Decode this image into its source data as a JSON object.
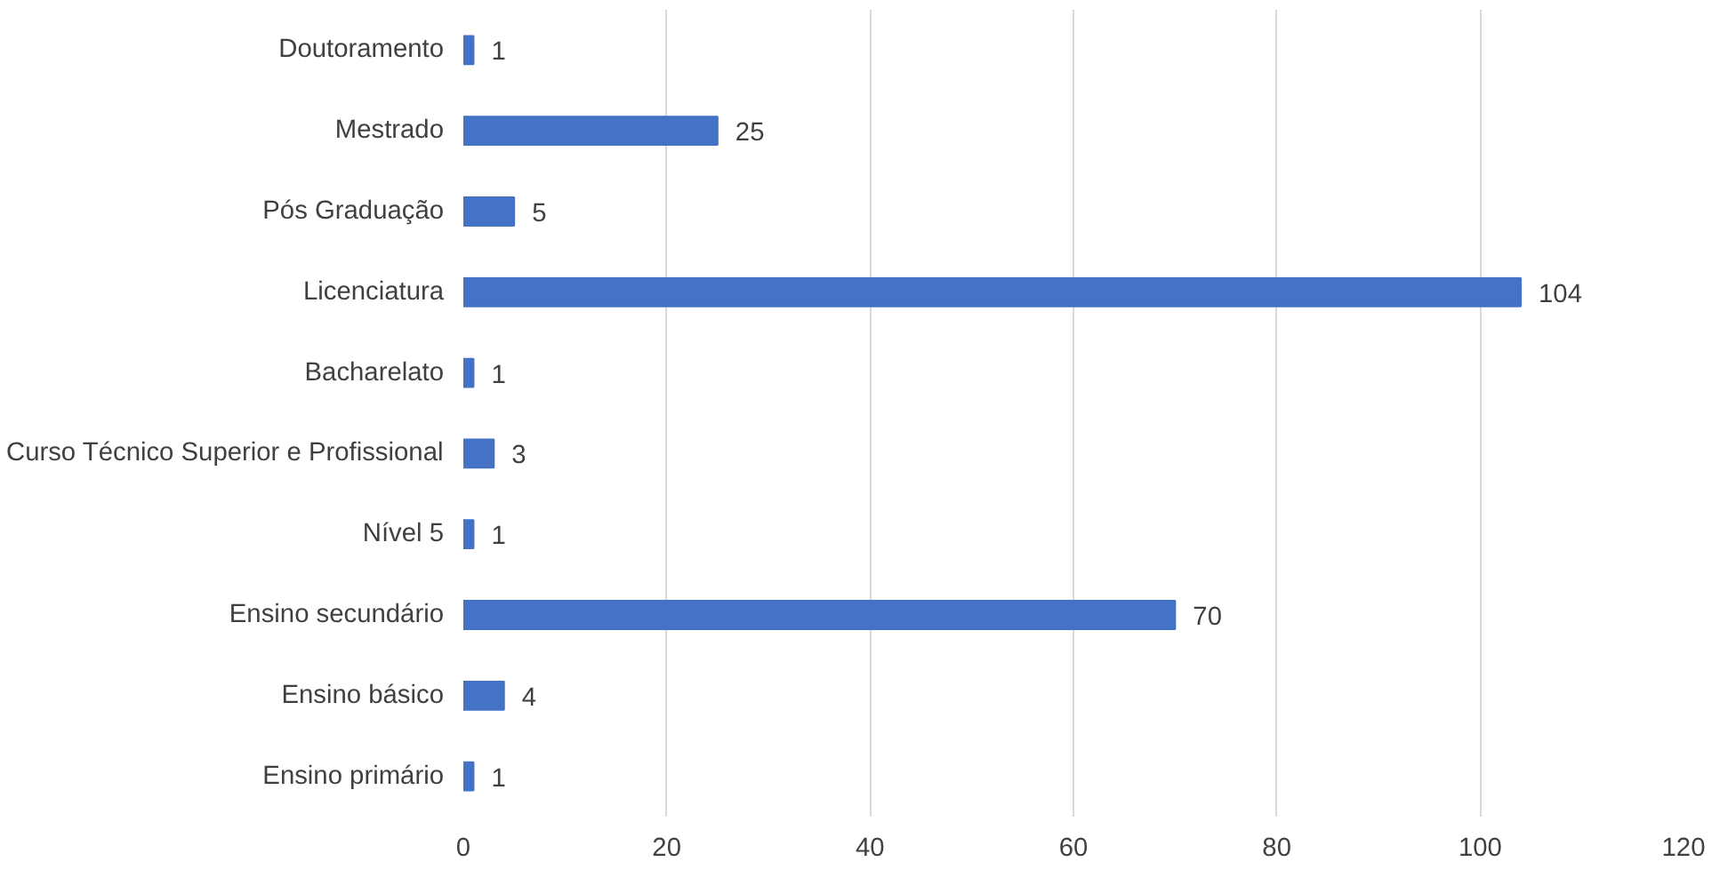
{
  "chart_data": {
    "type": "bar",
    "orientation": "horizontal",
    "categories": [
      "Doutoramento",
      "Mestrado",
      "Pós Graduação",
      "Licenciatura",
      "Bacharelato",
      "Curso Técnico Superior e Profissional",
      "Nível 5",
      "Ensino secundário",
      "Ensino básico",
      "Ensino primário"
    ],
    "values": [
      1,
      25,
      5,
      104,
      1,
      3,
      1,
      70,
      4,
      1
    ],
    "color": "#4472c4",
    "xlim": [
      0,
      120
    ],
    "xticks": [
      0,
      20,
      40,
      60,
      80,
      100,
      120
    ],
    "grid": "x",
    "data_labels": true
  }
}
